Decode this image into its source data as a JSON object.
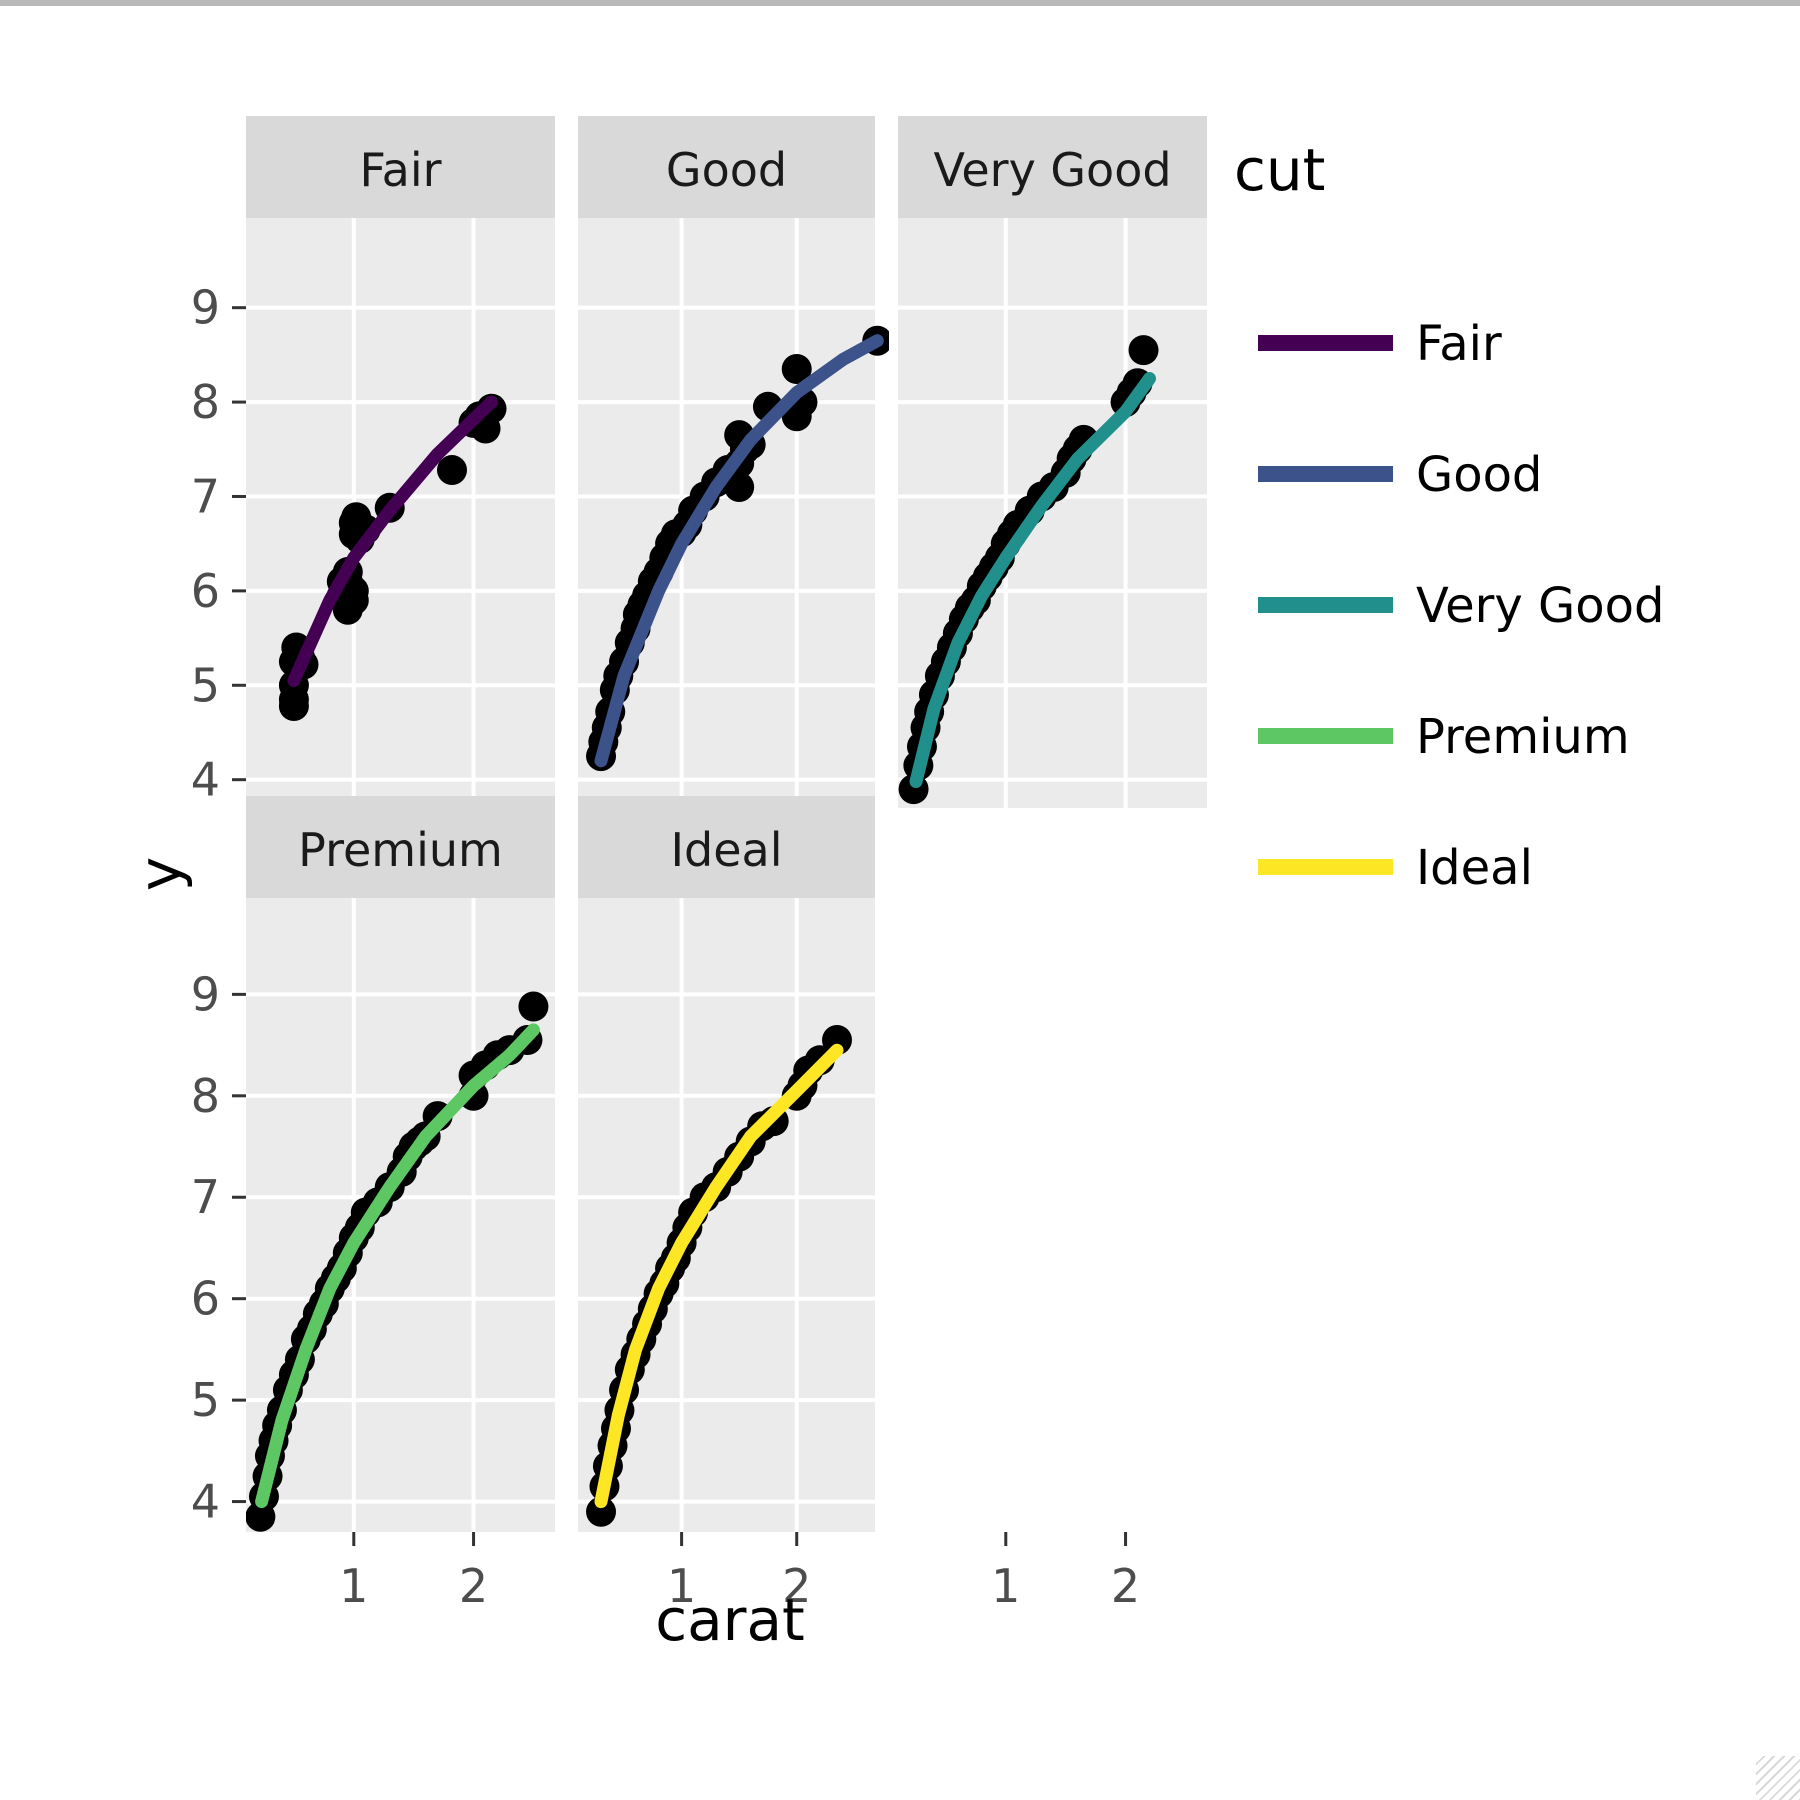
{
  "chart_data": {
    "type": "line",
    "facet_var": "cut",
    "xlabel": "carat",
    "ylabel": "y",
    "xlim": [
      0.1,
      2.68
    ],
    "ylim": [
      3.7,
      9.95
    ],
    "x_ticks": [
      1,
      2
    ],
    "y_ticks": [
      4,
      5,
      6,
      7,
      8,
      9
    ],
    "legend": {
      "title": "cut",
      "position": "right"
    },
    "grid": true,
    "panels": [
      {
        "name": "Fair",
        "color": "#440154",
        "line": [
          [
            0.5,
            5.05
          ],
          [
            0.8,
            5.9
          ],
          [
            1.0,
            6.35
          ],
          [
            1.3,
            6.85
          ],
          [
            1.7,
            7.45
          ],
          [
            2.15,
            8.0
          ]
        ],
        "points": [
          [
            0.5,
            4.85
          ],
          [
            0.5,
            4.78
          ],
          [
            0.5,
            5.0
          ],
          [
            0.5,
            5.25
          ],
          [
            0.52,
            5.4
          ],
          [
            0.55,
            5.3
          ],
          [
            0.58,
            5.22
          ],
          [
            0.9,
            5.95
          ],
          [
            0.95,
            5.8
          ],
          [
            0.9,
            6.1
          ],
          [
            0.95,
            6.2
          ],
          [
            1.0,
            6.6
          ],
          [
            1.0,
            6.72
          ],
          [
            1.05,
            6.55
          ],
          [
            1.02,
            6.78
          ],
          [
            1.1,
            6.65
          ],
          [
            1.3,
            6.88
          ],
          [
            1.0,
            6.0
          ],
          [
            1.0,
            5.9
          ],
          [
            0.95,
            6.1
          ],
          [
            1.82,
            7.28
          ],
          [
            2.0,
            7.78
          ],
          [
            2.05,
            7.85
          ],
          [
            2.1,
            7.72
          ],
          [
            2.15,
            7.93
          ]
        ]
      },
      {
        "name": "Good",
        "color": "#3b528b",
        "line": [
          [
            0.3,
            4.2
          ],
          [
            0.5,
            5.1
          ],
          [
            0.8,
            6.0
          ],
          [
            1.0,
            6.5
          ],
          [
            1.3,
            7.1
          ],
          [
            1.6,
            7.6
          ],
          [
            2.0,
            8.1
          ],
          [
            2.4,
            8.45
          ],
          [
            2.7,
            8.65
          ]
        ],
        "points": [
          [
            0.3,
            4.25
          ],
          [
            0.32,
            4.4
          ],
          [
            0.35,
            4.55
          ],
          [
            0.38,
            4.72
          ],
          [
            0.42,
            4.95
          ],
          [
            0.45,
            5.1
          ],
          [
            0.5,
            5.25
          ],
          [
            0.55,
            5.45
          ],
          [
            0.6,
            5.6
          ],
          [
            0.62,
            5.75
          ],
          [
            0.66,
            5.85
          ],
          [
            0.7,
            5.95
          ],
          [
            0.75,
            6.1
          ],
          [
            0.8,
            6.2
          ],
          [
            0.85,
            6.35
          ],
          [
            0.9,
            6.5
          ],
          [
            0.95,
            6.6
          ],
          [
            1.0,
            6.62
          ],
          [
            1.05,
            6.7
          ],
          [
            1.1,
            6.85
          ],
          [
            1.2,
            7.0
          ],
          [
            1.3,
            7.15
          ],
          [
            1.4,
            7.28
          ],
          [
            1.5,
            7.1
          ],
          [
            1.5,
            7.35
          ],
          [
            1.55,
            7.5
          ],
          [
            1.5,
            7.65
          ],
          [
            1.6,
            7.55
          ],
          [
            1.75,
            7.95
          ],
          [
            2.0,
            7.85
          ],
          [
            2.0,
            8.35
          ],
          [
            2.05,
            8.0
          ],
          [
            2.7,
            8.65
          ]
        ]
      },
      {
        "name": "Very Good",
        "color": "#21908c",
        "line": [
          [
            0.25,
            3.98
          ],
          [
            0.4,
            4.75
          ],
          [
            0.6,
            5.45
          ],
          [
            0.8,
            5.95
          ],
          [
            1.0,
            6.35
          ],
          [
            1.3,
            6.9
          ],
          [
            1.6,
            7.4
          ],
          [
            2.0,
            7.9
          ],
          [
            2.2,
            8.25
          ]
        ],
        "points": [
          [
            0.23,
            3.9
          ],
          [
            0.27,
            4.15
          ],
          [
            0.3,
            4.35
          ],
          [
            0.33,
            4.55
          ],
          [
            0.36,
            4.72
          ],
          [
            0.4,
            4.9
          ],
          [
            0.45,
            5.1
          ],
          [
            0.5,
            5.25
          ],
          [
            0.55,
            5.4
          ],
          [
            0.6,
            5.55
          ],
          [
            0.65,
            5.7
          ],
          [
            0.7,
            5.82
          ],
          [
            0.75,
            5.9
          ],
          [
            0.8,
            6.05
          ],
          [
            0.85,
            6.15
          ],
          [
            0.9,
            6.25
          ],
          [
            0.95,
            6.35
          ],
          [
            1.0,
            6.5
          ],
          [
            1.05,
            6.6
          ],
          [
            1.1,
            6.7
          ],
          [
            1.2,
            6.85
          ],
          [
            1.3,
            7.0
          ],
          [
            1.4,
            7.1
          ],
          [
            1.5,
            7.25
          ],
          [
            1.55,
            7.4
          ],
          [
            1.6,
            7.5
          ],
          [
            1.65,
            7.6
          ],
          [
            2.0,
            8.0
          ],
          [
            2.05,
            8.1
          ],
          [
            2.1,
            8.2
          ],
          [
            2.15,
            8.55
          ]
        ]
      },
      {
        "name": "Premium",
        "color": "#5dc863",
        "line": [
          [
            0.23,
            4.0
          ],
          [
            0.4,
            4.8
          ],
          [
            0.6,
            5.5
          ],
          [
            0.8,
            6.1
          ],
          [
            1.0,
            6.55
          ],
          [
            1.3,
            7.1
          ],
          [
            1.6,
            7.6
          ],
          [
            2.0,
            8.1
          ],
          [
            2.3,
            8.4
          ],
          [
            2.5,
            8.65
          ]
        ],
        "points": [
          [
            0.22,
            3.85
          ],
          [
            0.25,
            4.05
          ],
          [
            0.28,
            4.25
          ],
          [
            0.3,
            4.45
          ],
          [
            0.33,
            4.6
          ],
          [
            0.36,
            4.75
          ],
          [
            0.4,
            4.9
          ],
          [
            0.45,
            5.1
          ],
          [
            0.5,
            5.25
          ],
          [
            0.55,
            5.4
          ],
          [
            0.6,
            5.6
          ],
          [
            0.65,
            5.7
          ],
          [
            0.7,
            5.85
          ],
          [
            0.75,
            5.95
          ],
          [
            0.8,
            6.1
          ],
          [
            0.85,
            6.2
          ],
          [
            0.9,
            6.3
          ],
          [
            0.95,
            6.45
          ],
          [
            1.0,
            6.6
          ],
          [
            1.05,
            6.7
          ],
          [
            1.1,
            6.85
          ],
          [
            1.2,
            6.95
          ],
          [
            1.3,
            7.1
          ],
          [
            1.4,
            7.25
          ],
          [
            1.45,
            7.4
          ],
          [
            1.5,
            7.5
          ],
          [
            1.55,
            7.55
          ],
          [
            1.6,
            7.6
          ],
          [
            1.7,
            7.8
          ],
          [
            2.0,
            8.0
          ],
          [
            2.0,
            8.2
          ],
          [
            2.1,
            8.3
          ],
          [
            2.2,
            8.4
          ],
          [
            2.3,
            8.45
          ],
          [
            2.45,
            8.55
          ],
          [
            2.5,
            8.88
          ]
        ]
      },
      {
        "name": "Ideal",
        "color": "#fde725",
        "line": [
          [
            0.3,
            4.0
          ],
          [
            0.45,
            4.85
          ],
          [
            0.6,
            5.5
          ],
          [
            0.8,
            6.1
          ],
          [
            1.0,
            6.55
          ],
          [
            1.3,
            7.1
          ],
          [
            1.6,
            7.6
          ],
          [
            2.0,
            8.05
          ],
          [
            2.35,
            8.45
          ]
        ],
        "points": [
          [
            0.3,
            3.9
          ],
          [
            0.33,
            4.15
          ],
          [
            0.36,
            4.35
          ],
          [
            0.4,
            4.55
          ],
          [
            0.43,
            4.72
          ],
          [
            0.46,
            4.9
          ],
          [
            0.5,
            5.1
          ],
          [
            0.55,
            5.3
          ],
          [
            0.6,
            5.45
          ],
          [
            0.65,
            5.6
          ],
          [
            0.7,
            5.75
          ],
          [
            0.75,
            5.9
          ],
          [
            0.8,
            6.05
          ],
          [
            0.85,
            6.15
          ],
          [
            0.9,
            6.3
          ],
          [
            0.95,
            6.4
          ],
          [
            1.0,
            6.55
          ],
          [
            1.05,
            6.7
          ],
          [
            1.1,
            6.85
          ],
          [
            1.2,
            7.0
          ],
          [
            1.3,
            7.1
          ],
          [
            1.4,
            7.25
          ],
          [
            1.5,
            7.4
          ],
          [
            1.6,
            7.55
          ],
          [
            1.7,
            7.7
          ],
          [
            1.8,
            7.75
          ],
          [
            2.0,
            8.0
          ],
          [
            2.05,
            8.1
          ],
          [
            2.1,
            8.25
          ],
          [
            2.2,
            8.35
          ],
          [
            2.35,
            8.55
          ]
        ]
      }
    ]
  }
}
